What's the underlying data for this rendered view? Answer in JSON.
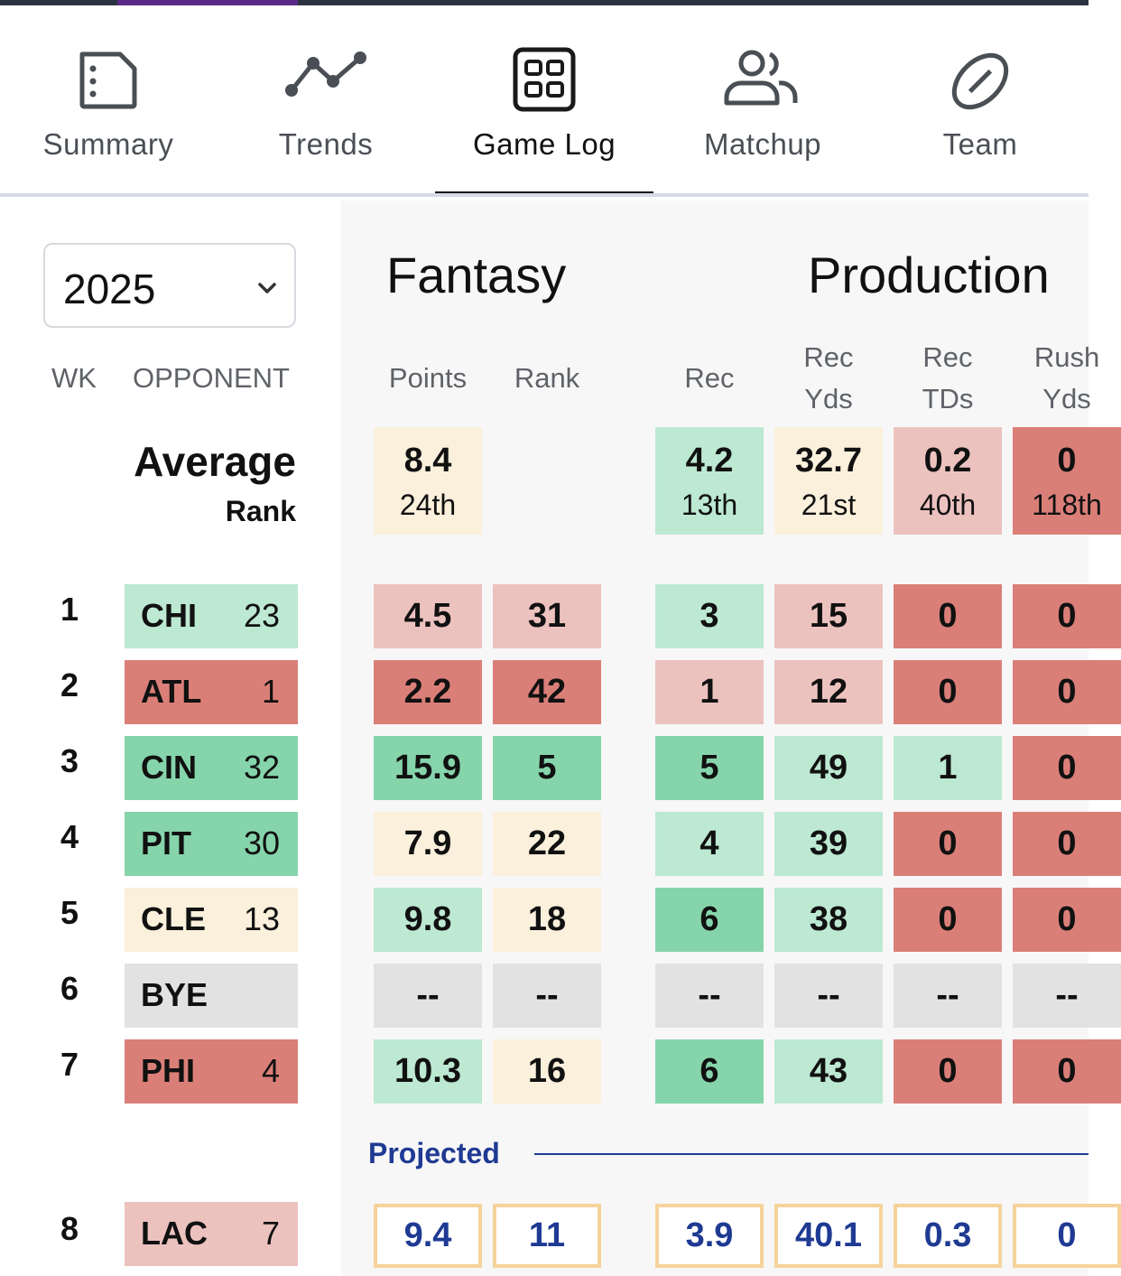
{
  "colors": {
    "dark_green": "#86d4ab",
    "light_green": "#bde8d2",
    "neutral": "#fbf0dc",
    "light_red": "#ecc2bf",
    "dark_red": "#da7f78",
    "bye": "#e2e2e2",
    "projected_border": "#f6d39b",
    "projected_text": "#1f3a93"
  },
  "tabs": [
    {
      "label": "Summary",
      "icon": "document-icon",
      "active": false
    },
    {
      "label": "Trends",
      "icon": "trend-line-icon",
      "active": false
    },
    {
      "label": "Game Log",
      "icon": "grid-icon",
      "active": true
    },
    {
      "label": "Matchup",
      "icon": "people-icon",
      "active": false
    },
    {
      "label": "Team",
      "icon": "football-icon",
      "active": false
    }
  ],
  "season_select": {
    "value": "2025"
  },
  "headers": {
    "wk": "WK",
    "opponent": "OPPONENT",
    "fantasy": "Fantasy",
    "production": "Production",
    "points": "Points",
    "rank": "Rank",
    "rec": "Rec",
    "rec_yds": [
      "Rec",
      "Yds"
    ],
    "rec_tds": [
      "Rec",
      "TDs"
    ],
    "rush_yds": [
      "Rush",
      "Yds"
    ]
  },
  "average": {
    "title": "Average",
    "rank_label": "Rank",
    "points": {
      "value": "8.4",
      "rank": "24th",
      "tone": "neutral"
    },
    "rec": {
      "value": "4.2",
      "rank": "13th",
      "tone": "light_green"
    },
    "rec_yds": {
      "value": "32.7",
      "rank": "21st",
      "tone": "neutral"
    },
    "rec_tds": {
      "value": "0.2",
      "rank": "40th",
      "tone": "light_red"
    },
    "rush_yds": {
      "value": "0",
      "rank": "118th",
      "tone": "dark_red"
    }
  },
  "games": [
    {
      "wk": "1",
      "opp": "CHI",
      "opp_rank": "23",
      "opp_tone": "light_green",
      "cells": [
        [
          "4.5",
          "light_red"
        ],
        [
          "31",
          "light_red"
        ],
        [
          "3",
          "light_green"
        ],
        [
          "15",
          "light_red"
        ],
        [
          "0",
          "dark_red"
        ],
        [
          "0",
          "dark_red"
        ]
      ]
    },
    {
      "wk": "2",
      "opp": "ATL",
      "opp_rank": "1",
      "opp_tone": "dark_red",
      "cells": [
        [
          "2.2",
          "dark_red"
        ],
        [
          "42",
          "dark_red"
        ],
        [
          "1",
          "light_red"
        ],
        [
          "12",
          "light_red"
        ],
        [
          "0",
          "dark_red"
        ],
        [
          "0",
          "dark_red"
        ]
      ]
    },
    {
      "wk": "3",
      "opp": "CIN",
      "opp_rank": "32",
      "opp_tone": "dark_green",
      "cells": [
        [
          "15.9",
          "dark_green"
        ],
        [
          "5",
          "dark_green"
        ],
        [
          "5",
          "dark_green"
        ],
        [
          "49",
          "light_green"
        ],
        [
          "1",
          "light_green"
        ],
        [
          "0",
          "dark_red"
        ]
      ]
    },
    {
      "wk": "4",
      "opp": "PIT",
      "opp_rank": "30",
      "opp_tone": "dark_green",
      "cells": [
        [
          "7.9",
          "neutral"
        ],
        [
          "22",
          "neutral"
        ],
        [
          "4",
          "light_green"
        ],
        [
          "39",
          "light_green"
        ],
        [
          "0",
          "dark_red"
        ],
        [
          "0",
          "dark_red"
        ]
      ]
    },
    {
      "wk": "5",
      "opp": "CLE",
      "opp_rank": "13",
      "opp_tone": "neutral",
      "cells": [
        [
          "9.8",
          "light_green"
        ],
        [
          "18",
          "neutral"
        ],
        [
          "6",
          "dark_green"
        ],
        [
          "38",
          "light_green"
        ],
        [
          "0",
          "dark_red"
        ],
        [
          "0",
          "dark_red"
        ]
      ]
    },
    {
      "wk": "6",
      "opp": "BYE",
      "opp_rank": "",
      "opp_tone": "bye",
      "cells": [
        [
          "--",
          "bye"
        ],
        [
          "--",
          "bye"
        ],
        [
          "--",
          "bye"
        ],
        [
          "--",
          "bye"
        ],
        [
          "--",
          "bye"
        ],
        [
          "--",
          "bye"
        ]
      ]
    },
    {
      "wk": "7",
      "opp": "PHI",
      "opp_rank": "4",
      "opp_tone": "dark_red",
      "cells": [
        [
          "10.3",
          "light_green"
        ],
        [
          "16",
          "neutral"
        ],
        [
          "6",
          "dark_green"
        ],
        [
          "43",
          "light_green"
        ],
        [
          "0",
          "dark_red"
        ],
        [
          "0",
          "dark_red"
        ]
      ]
    }
  ],
  "projected": {
    "label": "Projected",
    "wk": "8",
    "opp": "LAC",
    "opp_rank": "7",
    "opp_tone": "light_red",
    "cells": [
      "9.4",
      "11",
      "3.9",
      "40.1",
      "0.3",
      "0"
    ]
  }
}
